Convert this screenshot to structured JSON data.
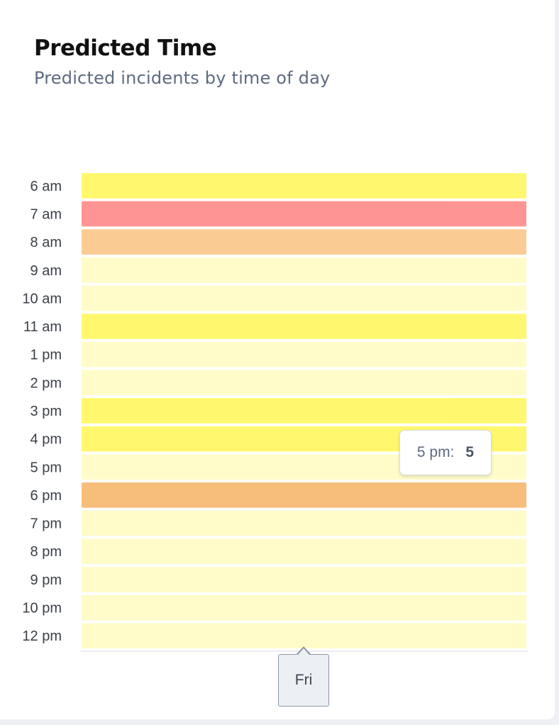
{
  "card": {
    "title": "Predicted Time",
    "subtitle": "Predicted incidents by time of day"
  },
  "chart_data": {
    "type": "heatmap",
    "title": "Predicted Time",
    "subtitle": "Predicted incidents by time of day",
    "x_categories": [
      "Fri"
    ],
    "y_categories": [
      "6 am",
      "7 am",
      "8 am",
      "9 am",
      "10 am",
      "11 am",
      "1 pm",
      "2 pm",
      "3 pm",
      "4 pm",
      "5 pm",
      "6 pm",
      "7 pm",
      "8 pm",
      "9 pm",
      "10 pm",
      "12 pm"
    ],
    "cell_colors": [
      "#fff86e",
      "#ff9494",
      "#facc94",
      "#fffcc9",
      "#fffcc9",
      "#fff86e",
      "#fffcc9",
      "#fffcc9",
      "#fff86e",
      "#fff86e",
      "#fffcc9",
      "#f7bd7a",
      "#fffcc9",
      "#fffcc9",
      "#fffcc9",
      "#fffcc9",
      "#fffcc9"
    ],
    "values": [
      null,
      null,
      null,
      null,
      null,
      null,
      null,
      null,
      null,
      null,
      5,
      null,
      null,
      null,
      null,
      null,
      null
    ],
    "colors": {
      "low": "#fffcc9",
      "medium": "#fff86e",
      "high": "#facc94",
      "higher": "#f7bd7a",
      "highest": "#ff9494"
    }
  },
  "tooltip": {
    "label": "5 pm:",
    "value": "5"
  },
  "x_tooltip": {
    "label": "Fri"
  }
}
